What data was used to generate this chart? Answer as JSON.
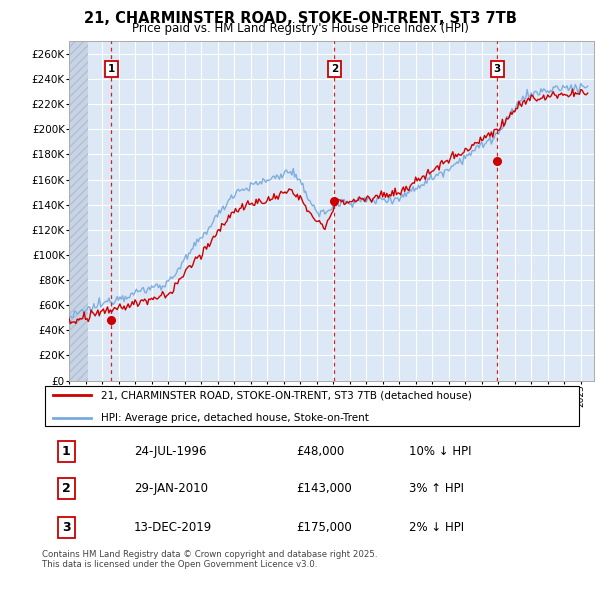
{
  "title": "21, CHARMINSTER ROAD, STOKE-ON-TRENT, ST3 7TB",
  "subtitle": "Price paid vs. HM Land Registry's House Price Index (HPI)",
  "bg_color": "#dce8f5",
  "grid_color": "#ffffff",
  "sale_color": "#cc0000",
  "hpi_color": "#7aaadd",
  "vline_color": "#cc0000",
  "marker_color": "#cc0000",
  "ylim": [
    0,
    270000
  ],
  "yticks": [
    0,
    20000,
    40000,
    60000,
    80000,
    100000,
    120000,
    140000,
    160000,
    180000,
    200000,
    220000,
    240000,
    260000
  ],
  "ytick_labels": [
    "£0",
    "£20K",
    "£40K",
    "£60K",
    "£80K",
    "£100K",
    "£120K",
    "£140K",
    "£160K",
    "£180K",
    "£200K",
    "£220K",
    "£240K",
    "£260K"
  ],
  "xlim_start": 1994.0,
  "xlim_end": 2025.8,
  "sales": [
    {
      "year": 1996.56,
      "price": 48000,
      "label": "1"
    },
    {
      "year": 2010.08,
      "price": 143000,
      "label": "2"
    },
    {
      "year": 2019.95,
      "price": 175000,
      "label": "3"
    }
  ],
  "sale_annotations": [
    {
      "num": "1",
      "date": "24-JUL-1996",
      "price": "£48,000",
      "pct": "10%",
      "dir": "↓",
      "rel": "HPI"
    },
    {
      "num": "2",
      "date": "29-JAN-2010",
      "price": "£143,000",
      "pct": "3%",
      "dir": "↑",
      "rel": "HPI"
    },
    {
      "num": "3",
      "date": "13-DEC-2019",
      "price": "£175,000",
      "pct": "2%",
      "dir": "↓",
      "rel": "HPI"
    }
  ],
  "legend_sale_label": "21, CHARMINSTER ROAD, STOKE-ON-TRENT, ST3 7TB (detached house)",
  "legend_hpi_label": "HPI: Average price, detached house, Stoke-on-Trent",
  "footer": "Contains HM Land Registry data © Crown copyright and database right 2025.\nThis data is licensed under the Open Government Licence v3.0.",
  "number_box_color": "#ffffff",
  "number_box_edge": "#cc0000"
}
